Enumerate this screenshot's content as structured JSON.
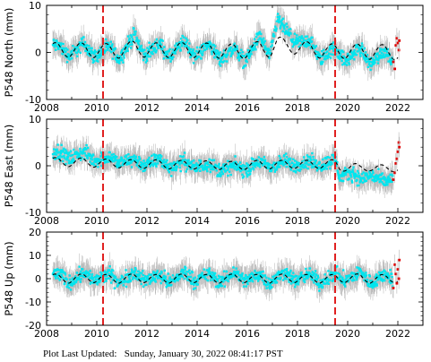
{
  "chart_data": [
    {
      "type": "scatter",
      "ylabel": "P548 North (mm)",
      "xlim": [
        2008,
        2023
      ],
      "ylim": [
        -10,
        10
      ],
      "x_ticks": [
        2008,
        2010,
        2012,
        2014,
        2016,
        2018,
        2020,
        2022
      ],
      "y_ticks": [
        -10,
        0,
        10
      ],
      "vertical_lines": [
        2010.25,
        2019.5
      ],
      "model": {
        "offset": 0.4,
        "amplitude": 1.3
      },
      "series": [
        {
          "values": [
            [
              2008.5,
              1.5
            ],
            [
              2008.9,
              -0.8
            ],
            [
              2009.5,
              2.0
            ],
            [
              2009.9,
              -1.0
            ],
            [
              2010.5,
              1.2
            ],
            [
              2010.9,
              -1.5
            ],
            [
              2011.5,
              4.0
            ],
            [
              2011.9,
              -0.8
            ],
            [
              2012.5,
              2.0
            ],
            [
              2012.9,
              -1.2
            ],
            [
              2013.5,
              2.5
            ],
            [
              2013.9,
              -1.0
            ],
            [
              2014.5,
              1.8
            ],
            [
              2014.9,
              -1.6
            ],
            [
              2015.5,
              1.0
            ],
            [
              2015.9,
              -2.0
            ],
            [
              2016.5,
              3.5
            ],
            [
              2016.9,
              -1.0
            ],
            [
              2017.2,
              7.0
            ],
            [
              2017.5,
              5.0
            ],
            [
              2017.9,
              2.0
            ],
            [
              2018.5,
              2.5
            ],
            [
              2018.9,
              -1.5
            ],
            [
              2019.5,
              1.0
            ],
            [
              2019.9,
              -2.0
            ],
            [
              2020.5,
              1.0
            ],
            [
              2020.9,
              -2.5
            ],
            [
              2021.5,
              0.5
            ],
            [
              2021.9,
              -3.0
            ]
          ]
        },
        {
          "values": [
            [
              2021.82,
              -2.0
            ],
            [
              2021.88,
              -3.5
            ],
            [
              2021.92,
              1.5
            ],
            [
              2021.96,
              3.0
            ],
            [
              2022.0,
              2.0
            ],
            [
              2022.04,
              0.5
            ],
            [
              2022.06,
              2.5
            ]
          ]
        }
      ]
    },
    {
      "type": "scatter",
      "ylabel": "P548 East (mm)",
      "xlim": [
        2008,
        2023
      ],
      "ylim": [
        -10,
        10
      ],
      "x_ticks": [
        2008,
        2010,
        2012,
        2014,
        2016,
        2018,
        2020,
        2022
      ],
      "y_ticks": [
        -10,
        0,
        10
      ],
      "vertical_lines": [
        2010.25,
        2019.5
      ],
      "model": {
        "offset": 0.2,
        "amplitude": 0.8
      },
      "series": [
        {
          "values": [
            [
              2008.5,
              3.0
            ],
            [
              2008.9,
              1.5
            ],
            [
              2009.5,
              3.0
            ],
            [
              2009.9,
              1.0
            ],
            [
              2010.5,
              2.0
            ],
            [
              2010.9,
              0.5
            ],
            [
              2011.5,
              1.5
            ],
            [
              2011.9,
              0.0
            ],
            [
              2012.5,
              1.5
            ],
            [
              2012.9,
              -0.5
            ],
            [
              2013.5,
              1.0
            ],
            [
              2013.9,
              -0.5
            ],
            [
              2014.5,
              0.5
            ],
            [
              2014.9,
              -1.0
            ],
            [
              2015.5,
              0.0
            ],
            [
              2015.9,
              -1.0
            ],
            [
              2016.5,
              1.0
            ],
            [
              2016.9,
              -0.5
            ],
            [
              2017.5,
              1.0
            ],
            [
              2017.9,
              0.0
            ],
            [
              2018.5,
              1.0
            ],
            [
              2018.9,
              0.0
            ],
            [
              2019.5,
              1.5
            ],
            [
              2019.7,
              -2.5
            ],
            [
              2020.2,
              -1.5
            ],
            [
              2020.5,
              -3.0
            ],
            [
              2020.9,
              -2.0
            ],
            [
              2021.5,
              -3.5
            ],
            [
              2021.9,
              -2.5
            ]
          ]
        },
        {
          "values": [
            [
              2021.82,
              -3.0
            ],
            [
              2021.88,
              -1.5
            ],
            [
              2021.92,
              0.5
            ],
            [
              2021.96,
              1.5
            ],
            [
              2022.0,
              3.0
            ],
            [
              2022.04,
              5.0
            ],
            [
              2022.06,
              4.0
            ]
          ]
        }
      ]
    },
    {
      "type": "scatter",
      "ylabel": "P548 Up (mm)",
      "xlabel": "",
      "xlim": [
        2008,
        2023
      ],
      "ylim": [
        -20,
        20
      ],
      "x_ticks": [
        2008,
        2010,
        2012,
        2014,
        2016,
        2018,
        2020,
        2022
      ],
      "y_ticks": [
        -20,
        -10,
        0,
        10,
        20
      ],
      "vertical_lines": [
        2010.25,
        2019.5
      ],
      "model": {
        "offset": 0.0,
        "amplitude": 1.5
      },
      "series": [
        {
          "values": [
            [
              2008.5,
              2.0
            ],
            [
              2008.9,
              -2.0
            ],
            [
              2009.5,
              3.0
            ],
            [
              2009.9,
              -1.0
            ],
            [
              2010.5,
              2.0
            ],
            [
              2010.9,
              -2.0
            ],
            [
              2011.5,
              3.0
            ],
            [
              2011.9,
              -1.0
            ],
            [
              2012.5,
              2.0
            ],
            [
              2012.9,
              -2.0
            ],
            [
              2013.5,
              3.0
            ],
            [
              2013.9,
              -1.0
            ],
            [
              2014.5,
              2.0
            ],
            [
              2014.9,
              -2.0
            ],
            [
              2015.5,
              3.0
            ],
            [
              2015.9,
              -1.0
            ],
            [
              2016.5,
              2.0
            ],
            [
              2016.9,
              -2.0
            ],
            [
              2017.5,
              3.0
            ],
            [
              2017.9,
              -1.0
            ],
            [
              2018.5,
              2.0
            ],
            [
              2018.9,
              -2.0
            ],
            [
              2019.5,
              2.0
            ],
            [
              2019.9,
              -1.0
            ],
            [
              2020.5,
              3.0
            ],
            [
              2020.9,
              -2.0
            ],
            [
              2021.5,
              2.0
            ],
            [
              2021.9,
              -1.0
            ]
          ]
        },
        {
          "values": [
            [
              2021.82,
              -4.0
            ],
            [
              2021.88,
              6.0
            ],
            [
              2021.92,
              2.0
            ],
            [
              2021.96,
              -2.0
            ],
            [
              2022.0,
              4.0
            ],
            [
              2022.04,
              0.0
            ],
            [
              2022.06,
              8.0
            ]
          ]
        }
      ]
    }
  ],
  "colors": {
    "data_points": "#00e5ee",
    "error_bars": "#b4b4b4",
    "recent_points": "#e00000",
    "event_lines": "#e02020",
    "model_line": "#000000"
  },
  "footer": {
    "label": "Plot Last Updated:",
    "timestamp": "Sunday, January 30, 2022 08:41:17 PST"
  }
}
